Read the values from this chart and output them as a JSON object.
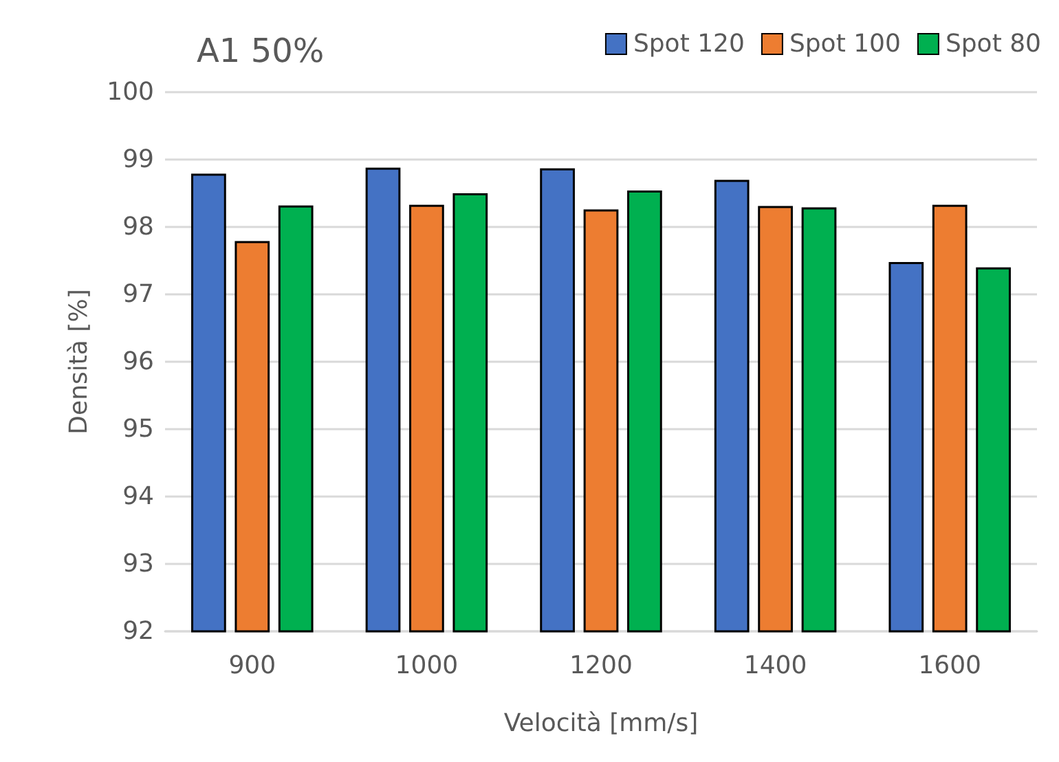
{
  "chart_data": {
    "type": "bar",
    "title": "A1 50%",
    "xlabel": "Velocità [mm/s]",
    "ylabel": "Densità [%]",
    "categories": [
      "900",
      "1000",
      "1200",
      "1400",
      "1600"
    ],
    "series": [
      {
        "name": "Spot 120",
        "color": "#4472c4",
        "values": [
          98.79,
          98.88,
          98.87,
          98.7,
          97.48
        ]
      },
      {
        "name": "Spot 100",
        "color": "#ed7d31",
        "values": [
          97.79,
          98.33,
          98.26,
          98.31,
          98.33
        ]
      },
      {
        "name": "Spot 80",
        "color": "#00b050",
        "values": [
          98.32,
          98.5,
          98.54,
          98.29,
          97.4
        ]
      }
    ],
    "ylim": [
      92,
      100
    ],
    "yticks": [
      92,
      93,
      94,
      95,
      96,
      97,
      98,
      99,
      100
    ],
    "grid": "y",
    "legend": "top right"
  }
}
